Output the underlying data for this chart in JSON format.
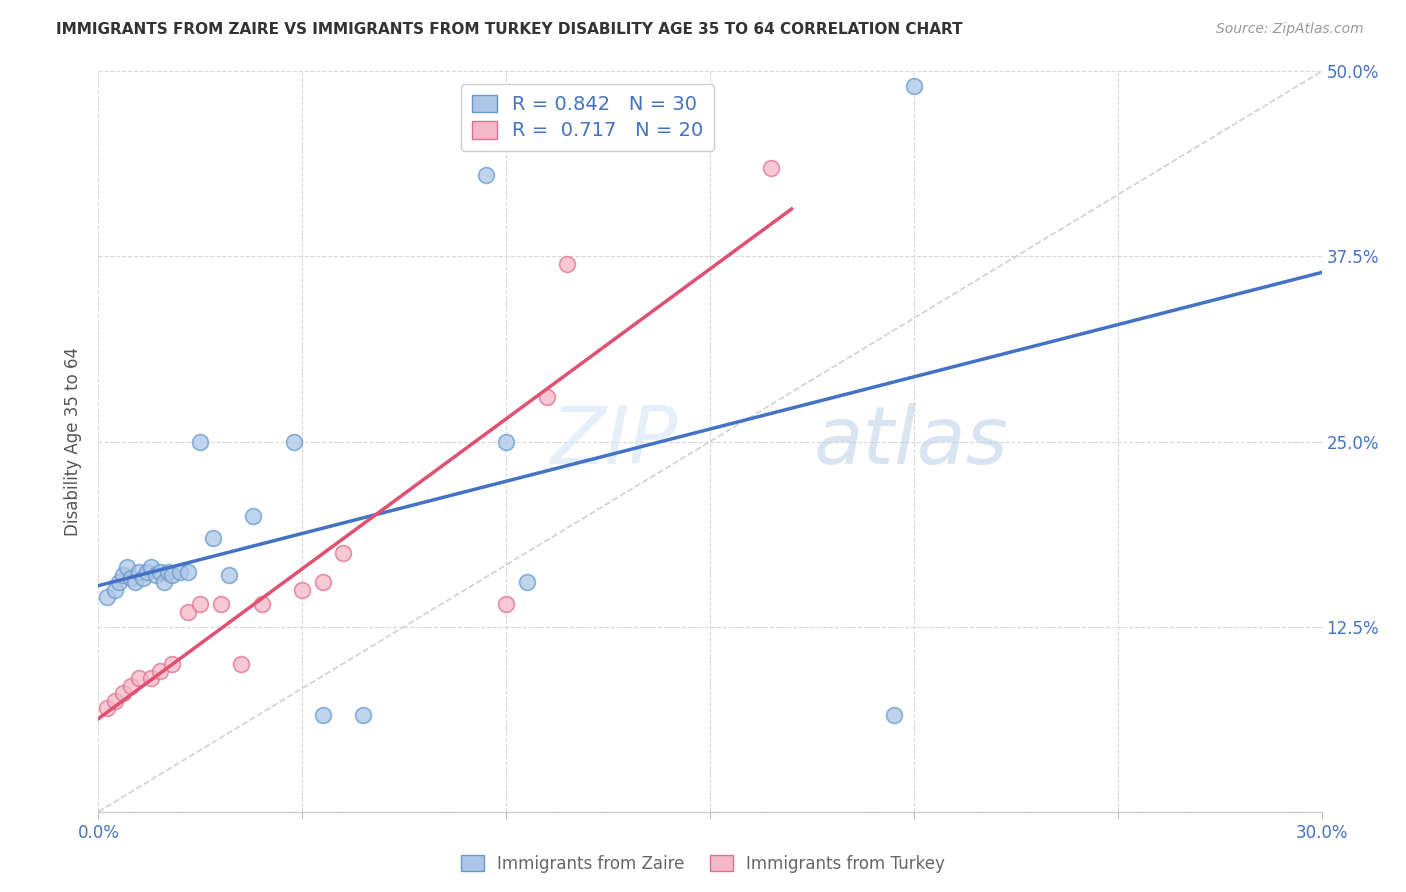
{
  "title": "IMMIGRANTS FROM ZAIRE VS IMMIGRANTS FROM TURKEY DISABILITY AGE 35 TO 64 CORRELATION CHART",
  "source": "Source: ZipAtlas.com",
  "ylabel": "Disability Age 35 to 64",
  "xlim": [
    0.0,
    0.3
  ],
  "ylim": [
    0.0,
    0.5
  ],
  "xticks": [
    0.0,
    0.05,
    0.1,
    0.15,
    0.2,
    0.25,
    0.3
  ],
  "yticks": [
    0.0,
    0.125,
    0.25,
    0.375,
    0.5
  ],
  "xticklabels": [
    "0.0%",
    "",
    "",
    "",
    "",
    "",
    "30.0%"
  ],
  "yticklabels": [
    "",
    "12.5%",
    "25.0%",
    "37.5%",
    "50.0%"
  ],
  "R_zaire": 0.842,
  "N_zaire": 30,
  "R_turkey": 0.717,
  "N_turkey": 20,
  "color_zaire_fill": "#adc6e8",
  "color_turkey_fill": "#f5b8c8",
  "color_zaire_edge": "#6699cc",
  "color_turkey_edge": "#e07090",
  "color_zaire_line": "#4472c4",
  "color_turkey_line": "#e05070",
  "color_diagonal": "#cccccc",
  "color_axis_text": "#4472c4",
  "color_title": "#333333",
  "color_source": "#999999",
  "color_ylabel": "#555555",
  "color_legend_label": "#666666",
  "watermark_color": "#ccddf0",
  "background_color": "#ffffff",
  "grid_color": "#d8d8d8",
  "zaire_x": [
    0.002,
    0.004,
    0.005,
    0.006,
    0.007,
    0.008,
    0.009,
    0.01,
    0.011,
    0.012,
    0.013,
    0.014,
    0.015,
    0.016,
    0.017,
    0.018,
    0.02,
    0.022,
    0.025,
    0.028,
    0.032,
    0.038,
    0.048,
    0.055,
    0.065,
    0.095,
    0.1,
    0.105,
    0.195,
    0.2
  ],
  "zaire_y": [
    0.145,
    0.15,
    0.155,
    0.16,
    0.165,
    0.158,
    0.155,
    0.162,
    0.158,
    0.162,
    0.165,
    0.16,
    0.162,
    0.155,
    0.162,
    0.16,
    0.162,
    0.162,
    0.25,
    0.185,
    0.16,
    0.2,
    0.25,
    0.065,
    0.065,
    0.43,
    0.25,
    0.155,
    0.065,
    0.49
  ],
  "turkey_x": [
    0.002,
    0.004,
    0.006,
    0.008,
    0.01,
    0.013,
    0.015,
    0.018,
    0.022,
    0.025,
    0.03,
    0.035,
    0.04,
    0.05,
    0.055,
    0.06,
    0.1,
    0.11,
    0.115,
    0.165
  ],
  "turkey_y": [
    0.07,
    0.075,
    0.08,
    0.085,
    0.09,
    0.09,
    0.095,
    0.1,
    0.135,
    0.14,
    0.14,
    0.1,
    0.14,
    0.15,
    0.155,
    0.175,
    0.14,
    0.28,
    0.37,
    0.435
  ]
}
